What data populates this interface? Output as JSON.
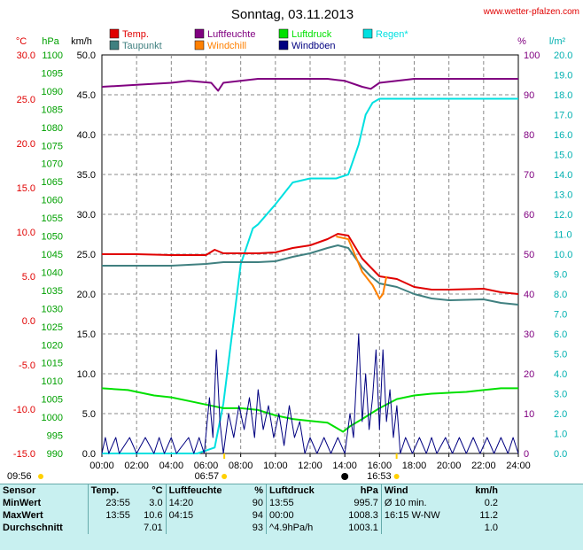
{
  "title": "Sonntag, 03.11.2013",
  "website": "www.wetter-pfalzen.com",
  "axis_units": {
    "temp": "°C",
    "pressure": "hPa",
    "wind": "km/h",
    "humidity": "%",
    "rain": "l/m²"
  },
  "legend": [
    {
      "label": "Temp.",
      "color": "#e00000"
    },
    {
      "label": "Taupunkt",
      "color": "#408080"
    },
    {
      "label": "Luftfeuchte",
      "color": "#800080"
    },
    {
      "label": "Windchill",
      "color": "#ff8000"
    },
    {
      "label": "Luftdruck",
      "color": "#00e000"
    },
    {
      "label": "Windböen",
      "color": "#000080"
    },
    {
      "label": "Regen*",
      "color": "#00e0e0"
    }
  ],
  "sun": {
    "sunrise": "06:57",
    "sunset": "16:53",
    "moonrise": "09:56"
  },
  "chart_data": {
    "type": "line",
    "x_ticks": [
      "00:00",
      "02:00",
      "04:00",
      "06:00",
      "08:00",
      "10:00",
      "12:00",
      "14:00",
      "16:00",
      "18:00",
      "20:00",
      "22:00",
      "24:00"
    ],
    "y_axes": {
      "temp": {
        "range": [
          -15,
          30
        ],
        "ticks": [
          "30.0",
          "25.0",
          "20.0",
          "15.0",
          "10.0",
          "5.0",
          "0.0",
          "-5.0",
          "-10.0",
          "-15.0"
        ],
        "color": "#e00000"
      },
      "pressure": {
        "range": [
          990,
          1100
        ],
        "step": 5,
        "color": "#00a000"
      },
      "wind": {
        "range": [
          0,
          50
        ],
        "ticks": [
          "50.0",
          "45.0",
          "40.0",
          "35.0",
          "30.0",
          "25.0",
          "20.0",
          "15.0",
          "10.0",
          "5.0",
          "0.0"
        ],
        "color": "#000000"
      },
      "humidity": {
        "range": [
          0,
          100
        ],
        "ticks": [
          "100",
          "90",
          "80",
          "70",
          "60",
          "50",
          "40",
          "30",
          "20",
          "10",
          "0"
        ],
        "color": "#800080"
      },
      "rain": {
        "range": [
          0,
          20
        ],
        "ticks": [
          "20.0",
          "19.0",
          "18.0",
          "17.0",
          "16.0",
          "15.0",
          "14.0",
          "13.0",
          "12.0",
          "11.0",
          "10.0",
          "9.0",
          "8.0",
          "7.0",
          "6.0",
          "5.0",
          "4.0",
          "3.0",
          "2.0",
          "1.0",
          "0.0"
        ],
        "color": "#00b0b0"
      }
    },
    "series": [
      {
        "name": "Luftfeuchte",
        "axis": "humidity",
        "color": "#800080",
        "points": [
          [
            0,
            92
          ],
          [
            2,
            92.5
          ],
          [
            4,
            93
          ],
          [
            5,
            93.5
          ],
          [
            6.3,
            93
          ],
          [
            6.7,
            91
          ],
          [
            7,
            93
          ],
          [
            9,
            94
          ],
          [
            12,
            94
          ],
          [
            13,
            94
          ],
          [
            14,
            93.5
          ],
          [
            15,
            92
          ],
          [
            15.5,
            91.5
          ],
          [
            16,
            93
          ],
          [
            18,
            94
          ],
          [
            20,
            94
          ],
          [
            22,
            94
          ],
          [
            24,
            94
          ]
        ]
      },
      {
        "name": "Regen*",
        "axis": "rain",
        "color": "#00e0e0",
        "points": [
          [
            0,
            0
          ],
          [
            5.5,
            0
          ],
          [
            6.5,
            0.3
          ],
          [
            7,
            2.5
          ],
          [
            7.5,
            6
          ],
          [
            8,
            9.5
          ],
          [
            8.7,
            11.3
          ],
          [
            9,
            11.5
          ],
          [
            10,
            12.5
          ],
          [
            11,
            13.6
          ],
          [
            12,
            13.8
          ],
          [
            13.5,
            13.8
          ],
          [
            14.2,
            14
          ],
          [
            14.8,
            15.5
          ],
          [
            15.2,
            17
          ],
          [
            15.6,
            17.6
          ],
          [
            16,
            17.8
          ],
          [
            20,
            17.8
          ],
          [
            24,
            17.8
          ]
        ]
      },
      {
        "name": "Temp.",
        "axis": "temp",
        "color": "#e00000",
        "points": [
          [
            0,
            7.5
          ],
          [
            2,
            7.5
          ],
          [
            4,
            7.4
          ],
          [
            6,
            7.4
          ],
          [
            6.5,
            8
          ],
          [
            7,
            7.6
          ],
          [
            9,
            7.6
          ],
          [
            10,
            7.7
          ],
          [
            11,
            8.2
          ],
          [
            12,
            8.5
          ],
          [
            13,
            9.2
          ],
          [
            13.6,
            9.8
          ],
          [
            14.2,
            9.6
          ],
          [
            15,
            7
          ],
          [
            15.5,
            6
          ],
          [
            16,
            5
          ],
          [
            17,
            4.7
          ],
          [
            18,
            3.8
          ],
          [
            19,
            3.5
          ],
          [
            20,
            3.5
          ],
          [
            22,
            3.6
          ],
          [
            23,
            3.2
          ],
          [
            24,
            3
          ]
        ]
      },
      {
        "name": "Taupunkt",
        "axis": "temp",
        "color": "#408080",
        "points": [
          [
            0,
            6.2
          ],
          [
            2,
            6.2
          ],
          [
            4,
            6.2
          ],
          [
            6,
            6.4
          ],
          [
            7,
            6.6
          ],
          [
            9,
            6.6
          ],
          [
            10,
            6.7
          ],
          [
            11,
            7.2
          ],
          [
            12,
            7.6
          ],
          [
            13,
            8.2
          ],
          [
            13.6,
            8.5
          ],
          [
            14.2,
            8.2
          ],
          [
            15,
            6
          ],
          [
            15.5,
            5
          ],
          [
            16,
            4.2
          ],
          [
            17,
            3.8
          ],
          [
            18,
            3
          ],
          [
            19,
            2.5
          ],
          [
            20,
            2.3
          ],
          [
            22,
            2.4
          ],
          [
            23,
            2
          ],
          [
            24,
            1.8
          ]
        ]
      },
      {
        "name": "Windchill",
        "axis": "temp",
        "color": "#ff8000",
        "points": [
          [
            13.5,
            9.5
          ],
          [
            14.2,
            9.2
          ],
          [
            15,
            5.5
          ],
          [
            15.6,
            4
          ],
          [
            16,
            2.5
          ],
          [
            16.2,
            3
          ],
          [
            16.4,
            5
          ]
        ]
      },
      {
        "name": "Luftdruck",
        "axis": "pressure",
        "color": "#00e000",
        "points": [
          [
            0,
            1008
          ],
          [
            1.5,
            1007.5
          ],
          [
            3,
            1006
          ],
          [
            4,
            1005.5
          ],
          [
            5,
            1004.5
          ],
          [
            6,
            1003.5
          ],
          [
            7,
            1002.5
          ],
          [
            8,
            1002.5
          ],
          [
            9,
            1002
          ],
          [
            10,
            1000.5
          ],
          [
            11,
            999.5
          ],
          [
            12,
            999
          ],
          [
            13,
            998.5
          ],
          [
            13.9,
            996
          ],
          [
            14.3,
            997.5
          ],
          [
            15,
            999.5
          ],
          [
            15.5,
            1001
          ],
          [
            16,
            1002.5
          ],
          [
            17,
            1005
          ],
          [
            18,
            1006
          ],
          [
            19,
            1006.5
          ],
          [
            21,
            1007
          ],
          [
            22,
            1007.5
          ],
          [
            23,
            1008
          ],
          [
            24,
            1008
          ]
        ]
      },
      {
        "name": "Windböen",
        "axis": "wind",
        "color": "#000080",
        "points": [
          [
            0,
            0
          ],
          [
            0.2,
            2
          ],
          [
            0.4,
            0
          ],
          [
            0.8,
            2
          ],
          [
            1,
            0
          ],
          [
            1.6,
            2
          ],
          [
            2,
            0
          ],
          [
            2.5,
            2
          ],
          [
            3,
            0
          ],
          [
            3.3,
            2
          ],
          [
            3.6,
            0
          ],
          [
            4,
            2
          ],
          [
            4.3,
            0
          ],
          [
            5,
            2
          ],
          [
            5.3,
            0
          ],
          [
            5.6,
            2
          ],
          [
            5.9,
            0
          ],
          [
            6.2,
            7
          ],
          [
            6.4,
            2
          ],
          [
            6.6,
            13
          ],
          [
            6.8,
            4
          ],
          [
            7,
            0
          ],
          [
            7.3,
            5
          ],
          [
            7.6,
            2
          ],
          [
            7.9,
            6
          ],
          [
            8.2,
            3
          ],
          [
            8.5,
            7
          ],
          [
            8.8,
            2
          ],
          [
            9,
            8
          ],
          [
            9.3,
            3
          ],
          [
            9.6,
            6
          ],
          [
            9.9,
            2
          ],
          [
            10.2,
            5
          ],
          [
            10.5,
            1
          ],
          [
            10.8,
            6
          ],
          [
            11.1,
            2
          ],
          [
            11.4,
            4
          ],
          [
            11.7,
            0
          ],
          [
            12,
            2
          ],
          [
            12.4,
            0
          ],
          [
            12.8,
            2
          ],
          [
            13.2,
            0
          ],
          [
            13.6,
            2
          ],
          [
            14,
            0
          ],
          [
            14.3,
            5
          ],
          [
            14.5,
            2
          ],
          [
            14.8,
            15
          ],
          [
            15,
            4
          ],
          [
            15.2,
            10
          ],
          [
            15.4,
            3
          ],
          [
            15.6,
            7
          ],
          [
            15.8,
            13
          ],
          [
            16,
            3
          ],
          [
            16.2,
            13
          ],
          [
            16.4,
            4
          ],
          [
            16.6,
            8
          ],
          [
            16.8,
            2
          ],
          [
            17,
            6
          ],
          [
            17.2,
            0
          ],
          [
            17.5,
            2
          ],
          [
            17.9,
            0
          ],
          [
            18.3,
            2
          ],
          [
            18.7,
            0
          ],
          [
            19,
            2
          ],
          [
            19.3,
            0
          ],
          [
            19.8,
            2
          ],
          [
            20.2,
            0
          ],
          [
            20.6,
            2
          ],
          [
            21,
            0
          ],
          [
            21.4,
            2
          ],
          [
            21.8,
            0
          ],
          [
            22.2,
            2
          ],
          [
            22.6,
            0
          ],
          [
            23,
            2
          ],
          [
            23.4,
            0
          ],
          [
            23.7,
            2
          ],
          [
            24,
            0
          ]
        ]
      }
    ],
    "stats": {
      "headers": [
        "Sensor",
        "Temp.",
        "°C",
        "Luftfeuchte",
        "%",
        "Luftdruck",
        "hPa",
        "Wind",
        "km/h"
      ],
      "rows": [
        {
          "label": "MinWert",
          "t_time": "23:55",
          "t_val": "3.0",
          "h_time": "14:20",
          "h_val": "90",
          "p_time": "13:55",
          "p_val": "995.7",
          "w_time": "Ø 10 min.",
          "w_val": "0.2"
        },
        {
          "label": "MaxWert",
          "t_time": "13:55",
          "t_val": "10.6",
          "h_time": "04:15",
          "h_val": "94",
          "p_time": "00:00",
          "p_val": "1008.3",
          "w_time": "16:15   W-NW",
          "w_val": "11.2"
        },
        {
          "label": "Durchschnitt",
          "t_time": "",
          "t_val": "7.01",
          "h_time": "",
          "h_val": "93",
          "p_time": "^4.9hPa/h",
          "p_val": "1003.1",
          "w_time": "",
          "w_val": "1.0"
        }
      ]
    }
  }
}
